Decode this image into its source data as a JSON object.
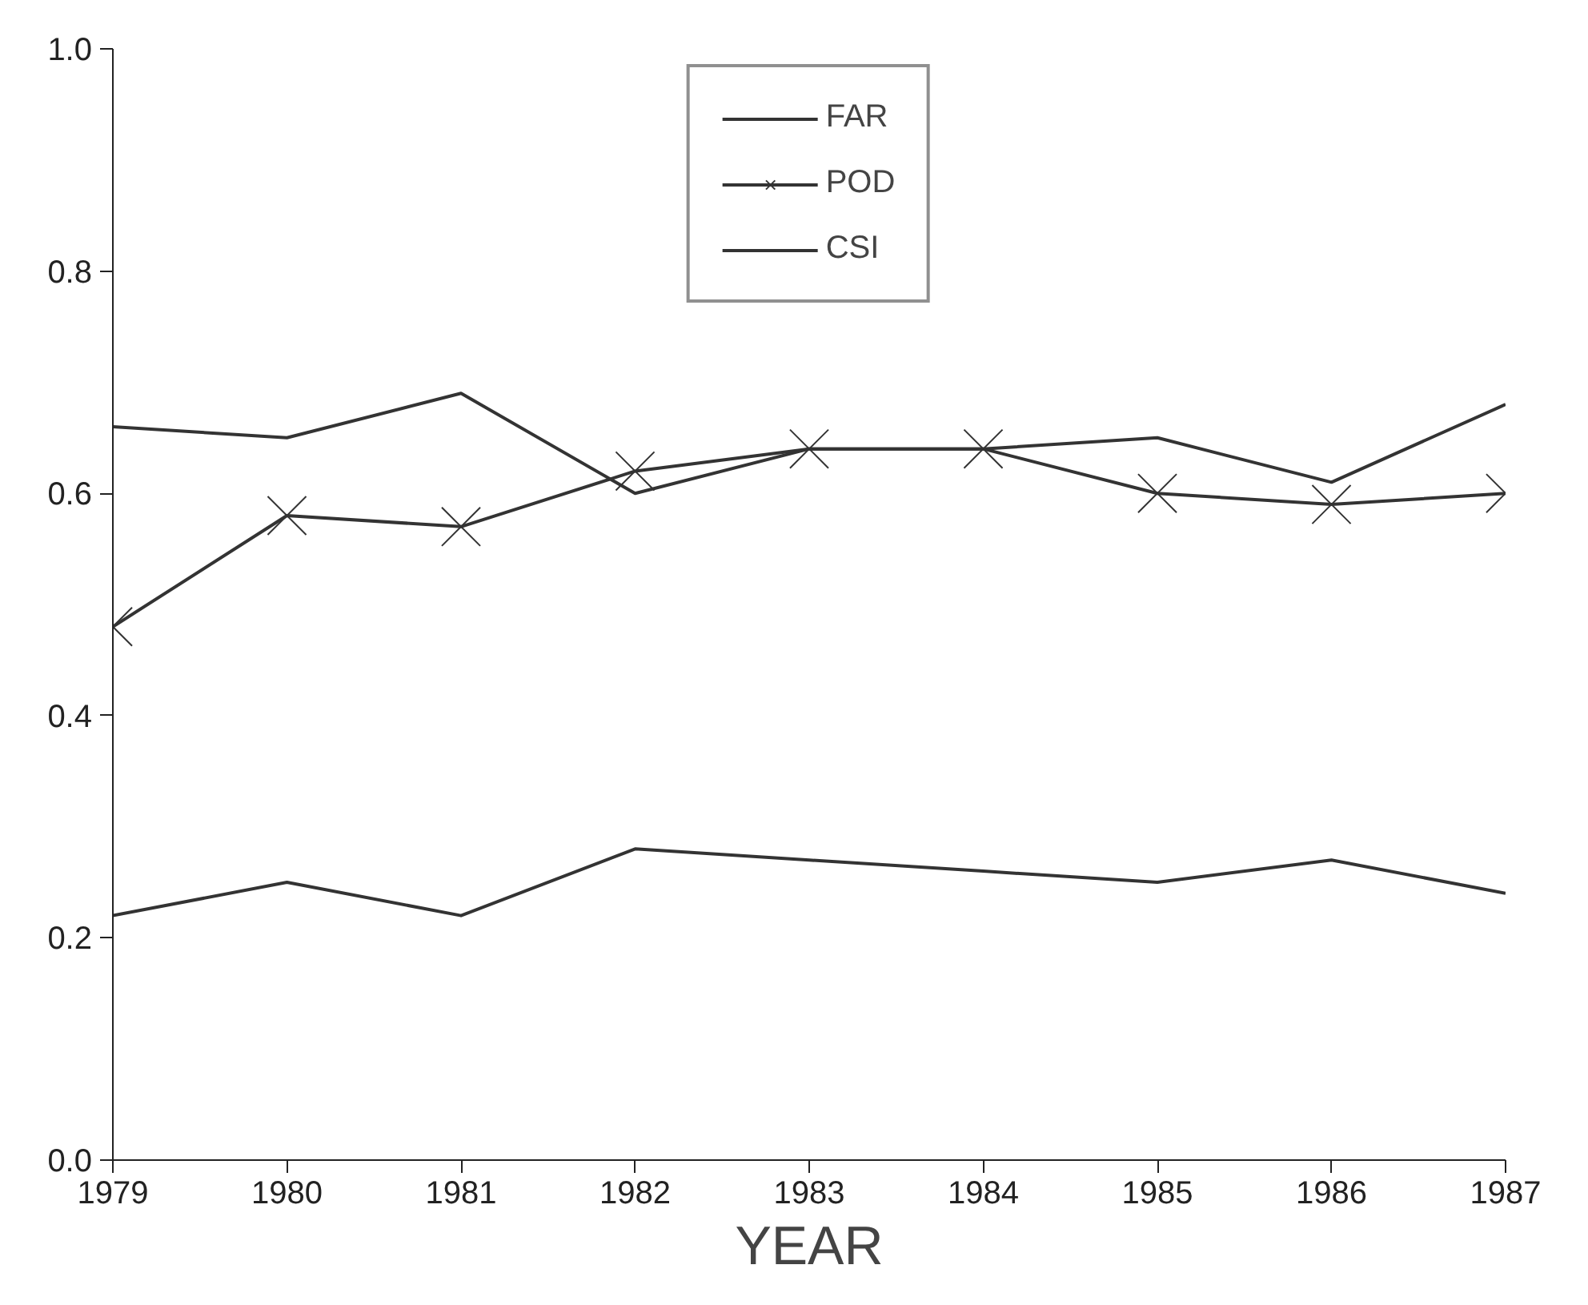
{
  "chart_data": {
    "type": "line",
    "xlabel": "YEAR",
    "x": [
      1979,
      1980,
      1981,
      1982,
      1983,
      1984,
      1985,
      1986,
      1987
    ],
    "series": [
      {
        "name": "FAR",
        "color": "#333333",
        "values": [
          0.66,
          0.65,
          0.69,
          0.6,
          0.64,
          0.64,
          0.65,
          0.61,
          0.68
        ]
      },
      {
        "name": "POD",
        "color": "#333333",
        "marker": "cross",
        "values": [
          0.48,
          0.58,
          0.57,
          0.62,
          0.64,
          0.64,
          0.6,
          0.59,
          0.6
        ]
      },
      {
        "name": "CSI",
        "color": "#333333",
        "values": [
          0.22,
          0.25,
          0.22,
          0.28,
          0.27,
          0.26,
          0.25,
          0.27,
          0.24
        ]
      }
    ],
    "xlim": [
      1979,
      1987
    ],
    "xticks": [
      1979,
      1980,
      1981,
      1982,
      1983,
      1984,
      1985,
      1986,
      1987
    ],
    "ylim": [
      0,
      1
    ],
    "yticks": [
      {
        "value": 0,
        "label": "0.0"
      },
      {
        "value": 0.2,
        "label": "0.2"
      },
      {
        "value": 0.4,
        "label": "0.4"
      },
      {
        "value": 0.6,
        "label": "0.6"
      },
      {
        "value": 0.8,
        "label": "0.8"
      },
      {
        "value": 1,
        "label": "1.0"
      }
    ],
    "grid": false,
    "legend": "top"
  }
}
